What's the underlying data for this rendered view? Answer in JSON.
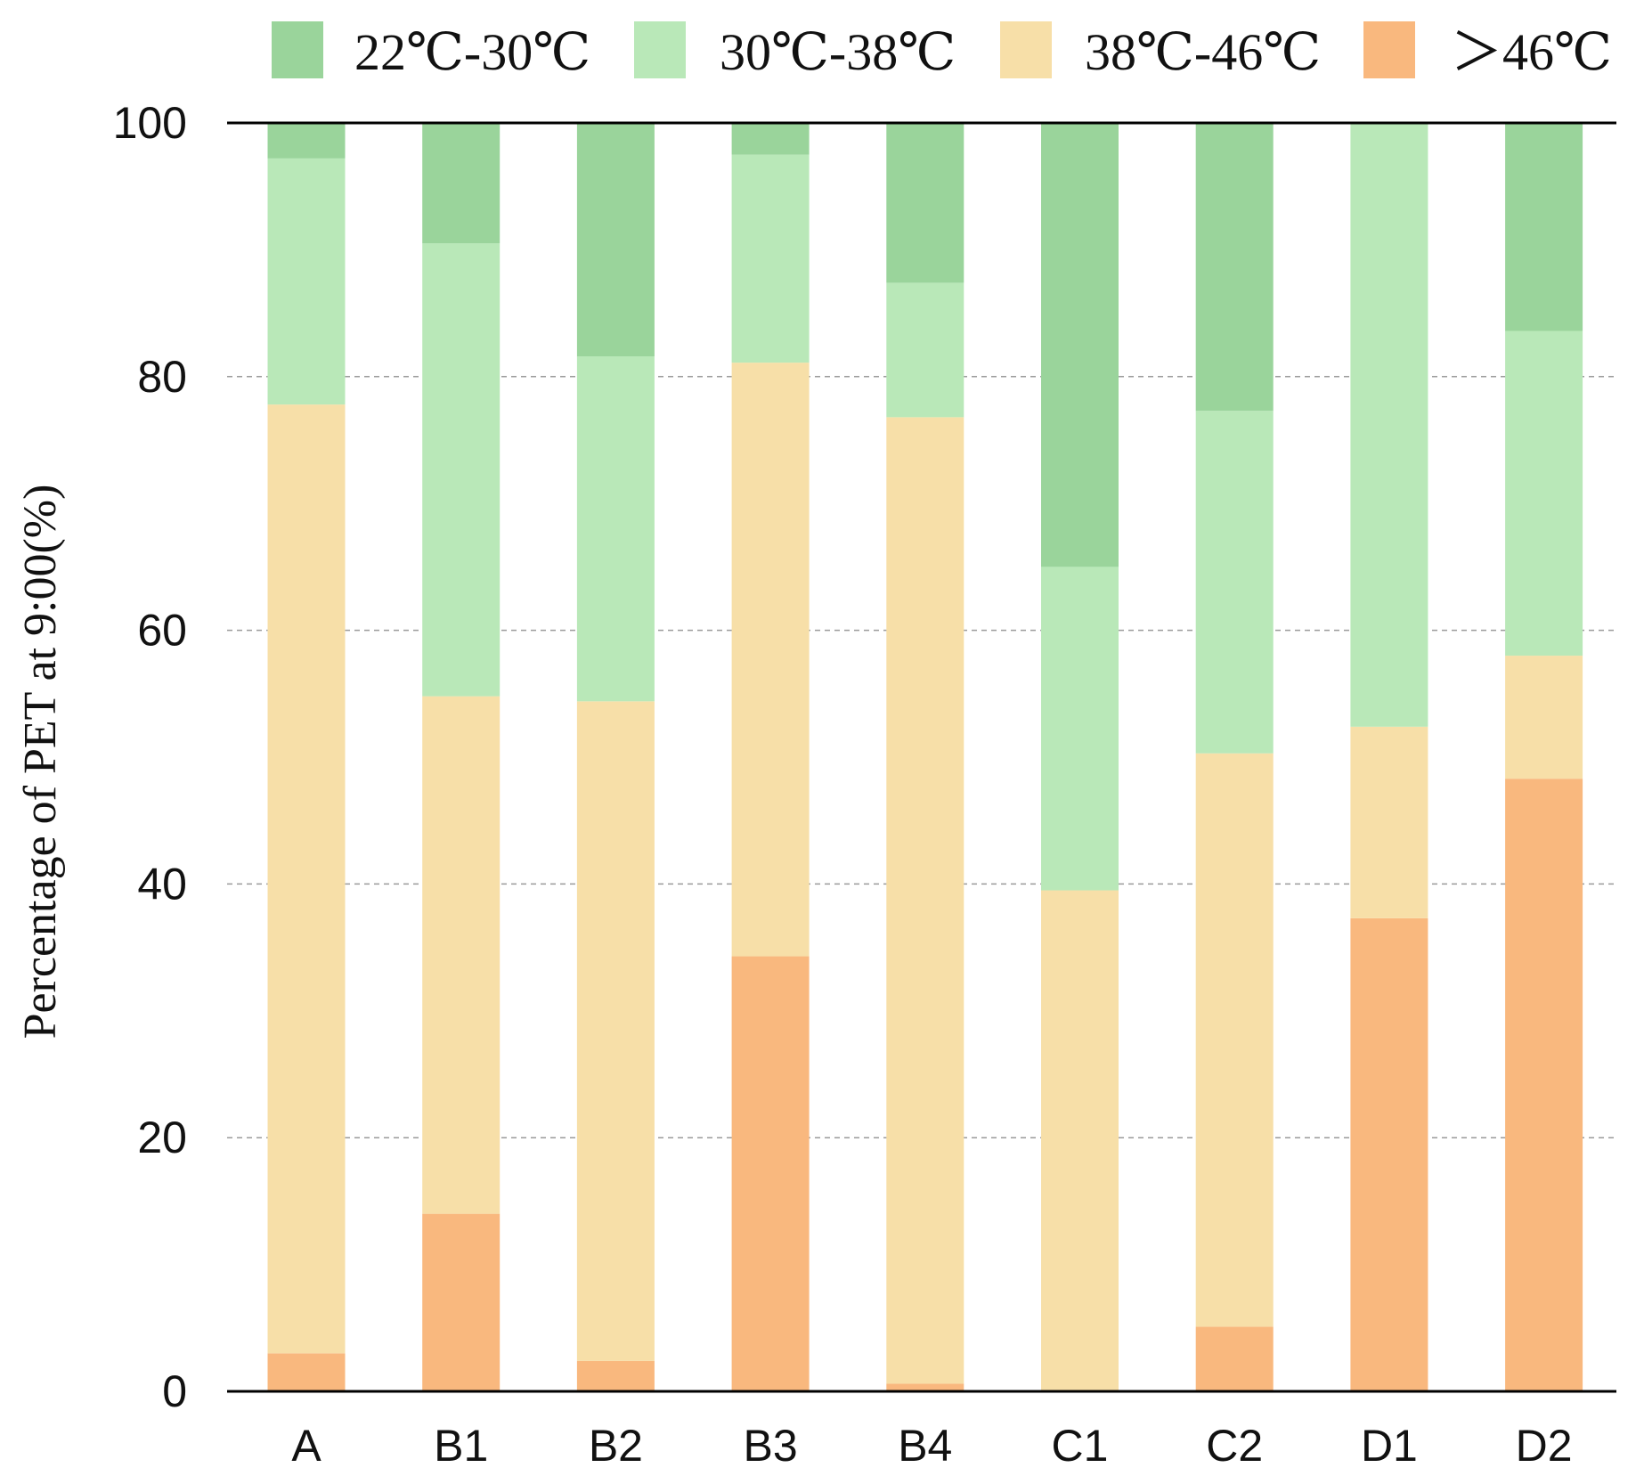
{
  "chart_data": {
    "type": "bar",
    "stacked": true,
    "percent": true,
    "categories": [
      "A",
      "B1",
      "B2",
      "B3",
      "B4",
      "C1",
      "C2",
      "D1",
      "D2"
    ],
    "series": [
      {
        "name": ">46°C",
        "color": "#F9B87E",
        "values": [
          3.0,
          14.0,
          2.4,
          34.3,
          0.6,
          0.0,
          5.1,
          37.3,
          48.3
        ]
      },
      {
        "name": "38°C-46°C",
        "color": "#F7DFA8",
        "values": [
          74.8,
          40.8,
          52.0,
          46.8,
          76.2,
          39.5,
          45.2,
          15.1,
          9.7
        ]
      },
      {
        "name": "30°C-38°C",
        "color": "#B9E8B8",
        "values": [
          19.4,
          35.7,
          27.2,
          16.4,
          10.6,
          25.5,
          27.0,
          47.6,
          25.6
        ]
      },
      {
        "name": "22°C-30°C",
        "color": "#9AD49B",
        "values": [
          2.8,
          9.5,
          18.4,
          2.5,
          12.6,
          35.0,
          22.7,
          0.0,
          16.4
        ]
      }
    ],
    "legend_order": [
      "22°C-30°C",
      "30°C-38°C",
      "38°C-46°C",
      ">46°C"
    ],
    "legend_labels": {
      "22°C-30°C": "22℃-30℃",
      "30°C-38°C": "30℃-38℃",
      "38°C-46°C": "38℃-46℃",
      ">46°C": "＞46℃"
    },
    "title": "",
    "xlabel": "",
    "ylabel": "Percentage of PET at 9:00(%)",
    "ylim": [
      0,
      100
    ],
    "yticks": [
      0,
      20,
      40,
      60,
      80,
      100
    ],
    "grid": "dashed-horizontal",
    "legend_position": "top"
  }
}
